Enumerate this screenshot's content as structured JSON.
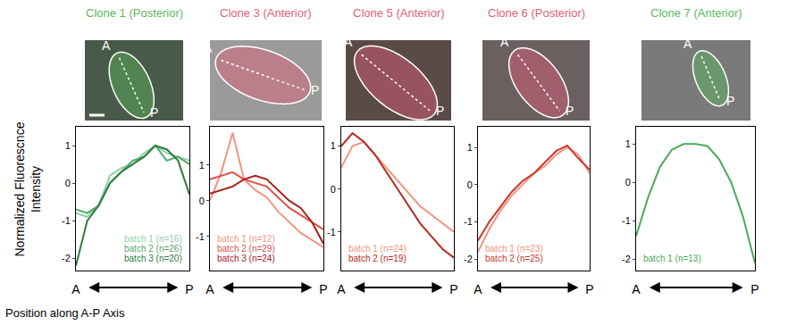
{
  "chart_data": [
    {
      "type": "line",
      "title": "Clone 1 (Posterior)",
      "color": "#5cb85c",
      "image_labels": [
        "A",
        "P"
      ],
      "ylabel": [
        "Normalized Fluorescnce",
        "Intensity"
      ],
      "xlabel": "Position along A-P Axis",
      "x": [
        0,
        0.1,
        0.2,
        0.3,
        0.4,
        0.5,
        0.6,
        0.7,
        0.8,
        0.9,
        1
      ],
      "xlim": [
        0,
        1
      ],
      "xticks": [
        {
          "value": 0,
          "label": "A"
        },
        {
          "value": 1,
          "label": "P"
        }
      ],
      "ylim": [
        -2.33,
        1.5
      ],
      "yticks": [
        -2,
        -1,
        0,
        1
      ],
      "grid": false,
      "legend": "lower right",
      "series": [
        {
          "name": "batch 1 (n=16)",
          "color": "#8fd0a8",
          "values": [
            -0.8,
            -0.9,
            -0.6,
            0.2,
            0.4,
            0.5,
            0.8,
            1.0,
            0.8,
            0.7,
            0.6
          ]
        },
        {
          "name": "batch 2 (n=26)",
          "color": "#52a86a",
          "values": [
            -0.7,
            -0.8,
            -0.6,
            0.0,
            0.3,
            0.6,
            0.7,
            1.0,
            0.6,
            0.7,
            0.5
          ]
        },
        {
          "name": "batch 3 (n=20)",
          "color": "#2e7d3e",
          "values": [
            -2.2,
            -1.0,
            -0.6,
            0.0,
            0.3,
            0.5,
            0.7,
            1.0,
            0.9,
            0.6,
            -0.3
          ]
        }
      ]
    },
    {
      "type": "line",
      "title": "Clone 3 (Anterior)",
      "color": "#e2607a",
      "image_labels": [
        "A",
        "P"
      ],
      "x": [
        0,
        0.1,
        0.2,
        0.3,
        0.4,
        0.5,
        0.6,
        0.7,
        0.8,
        0.9,
        1
      ],
      "xlim": [
        0,
        1
      ],
      "xticks": [
        {
          "value": 0,
          "label": "A"
        },
        {
          "value": 1,
          "label": "P"
        }
      ],
      "ylim": [
        -1.95,
        2.07
      ],
      "yticks": [
        -1,
        0,
        1
      ],
      "grid": false,
      "legend": "lower left",
      "series": [
        {
          "name": "batch 1 (n=12)",
          "color": "#f29580",
          "values": [
            0.0,
            0.8,
            1.9,
            0.6,
            0.3,
            0.1,
            -0.3,
            -0.6,
            -0.9,
            -1.1,
            -1.3
          ]
        },
        {
          "name": "batch 2 (n=29)",
          "color": "#e0504a",
          "values": [
            0.6,
            0.7,
            0.8,
            0.6,
            0.5,
            0.4,
            0.1,
            -0.2,
            -0.4,
            -0.6,
            -0.8
          ]
        },
        {
          "name": "batch 3 (n=24)",
          "color": "#a8201a",
          "values": [
            0.2,
            0.3,
            0.4,
            0.6,
            0.7,
            0.6,
            0.3,
            0.0,
            -0.2,
            -0.6,
            -1.2
          ]
        }
      ]
    },
    {
      "type": "line",
      "title": "Clone 5 (Anterior)",
      "color": "#e2607a",
      "image_labels": [
        "A",
        "P"
      ],
      "x": [
        0,
        0.1,
        0.2,
        0.3,
        0.4,
        0.5,
        0.6,
        0.7,
        0.8,
        0.9,
        1
      ],
      "xlim": [
        0,
        1
      ],
      "xticks": [
        {
          "value": 0,
          "label": "A"
        },
        {
          "value": 1,
          "label": "P"
        }
      ],
      "ylim": [
        -1.9,
        1.45
      ],
      "yticks": [
        -1,
        0,
        1
      ],
      "grid": false,
      "legend": "lower left",
      "series": [
        {
          "name": "batch 1 (n=24)",
          "color": "#f29580",
          "values": [
            0.5,
            1.0,
            1.1,
            0.8,
            0.5,
            0.2,
            -0.1,
            -0.4,
            -0.6,
            -0.8,
            -1.0
          ]
        },
        {
          "name": "batch 2 (n=19)",
          "color": "#b82a20",
          "values": [
            1.0,
            1.3,
            1.1,
            0.8,
            0.4,
            0.0,
            -0.4,
            -0.8,
            -1.1,
            -1.4,
            -1.6
          ]
        }
      ]
    },
    {
      "type": "line",
      "title": "Clone 6 (Posterior)",
      "color": "#e2607a",
      "image_labels": [
        "A",
        "P"
      ],
      "x": [
        0,
        0.1,
        0.2,
        0.3,
        0.4,
        0.5,
        0.6,
        0.7,
        0.8,
        0.9,
        1
      ],
      "xlim": [
        0,
        1
      ],
      "xticks": [
        {
          "value": 0,
          "label": "A"
        },
        {
          "value": 1,
          "label": "P"
        }
      ],
      "ylim": [
        -2.3,
        1.55
      ],
      "yticks": [
        -2,
        -1,
        0,
        1
      ],
      "grid": false,
      "legend": "lower left",
      "series": [
        {
          "name": "batch 1 (n=23)",
          "color": "#f29580",
          "values": [
            -1.8,
            -1.2,
            -0.7,
            -0.3,
            0.0,
            0.3,
            0.5,
            0.8,
            1.0,
            0.8,
            0.3
          ]
        },
        {
          "name": "batch 2 (n=25)",
          "color": "#c83a2a",
          "values": [
            -1.5,
            -1.0,
            -0.6,
            -0.2,
            0.1,
            0.3,
            0.6,
            0.9,
            1.05,
            0.7,
            0.4
          ]
        }
      ]
    },
    {
      "type": "line",
      "title": "Clone 7 (Anterior)",
      "color": "#5cb85c",
      "image_labels": [
        "A",
        "P"
      ],
      "x": [
        0,
        0.1,
        0.2,
        0.3,
        0.4,
        0.5,
        0.6,
        0.7,
        0.8,
        0.9,
        1
      ],
      "xlim": [
        0,
        1
      ],
      "xticks": [
        {
          "value": 0,
          "label": "A"
        },
        {
          "value": 1,
          "label": "P"
        }
      ],
      "ylim": [
        -2.3,
        1.45
      ],
      "yticks": [
        -2,
        -1,
        0,
        1
      ],
      "grid": false,
      "legend": "lower left",
      "series": [
        {
          "name": "batch 1 (n=13)",
          "color": "#4caa5a",
          "values": [
            -1.4,
            -0.4,
            0.4,
            0.85,
            1.0,
            1.0,
            0.95,
            0.6,
            0.0,
            -0.9,
            -2.1
          ]
        }
      ]
    }
  ]
}
